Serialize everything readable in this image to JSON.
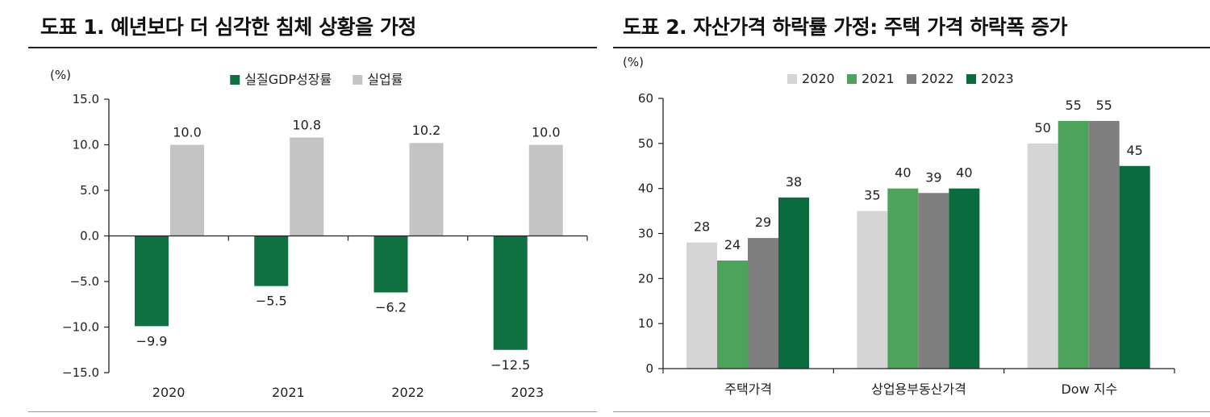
{
  "colors": {
    "gdp": "#0f7042",
    "unemployment": "#c4c4c4",
    "y2020": "#d5d5d5",
    "y2021": "#4da35c",
    "y2022": "#7f7f7f",
    "y2023": "#0a6b3f",
    "axis": "#222222",
    "text": "#222222"
  },
  "chart_data": [
    {
      "type": "bar",
      "title": "도표 1. 예년보다 더 심각한 침체 상황을 가정",
      "unit_label": "(%)",
      "xlabel": "",
      "ylabel": "",
      "categories": [
        "2020",
        "2021",
        "2022",
        "2023"
      ],
      "series": [
        {
          "name": "실질GDP성장률",
          "color": "#0f7042",
          "values": [
            -9.9,
            -5.5,
            -6.2,
            -12.5
          ],
          "labels": [
            "−9.9",
            "−5.5",
            "−6.2",
            "−12.5"
          ]
        },
        {
          "name": "실업률",
          "color": "#c4c4c4",
          "values": [
            10.0,
            10.8,
            10.2,
            10.0
          ],
          "labels": [
            "10.0",
            "10.8",
            "10.2",
            "10.0"
          ]
        }
      ],
      "ylim": [
        -15,
        15
      ],
      "yticks": [
        15,
        10,
        5,
        0,
        -5,
        -10,
        -15
      ],
      "ytick_labels": [
        "15.0",
        "10.0",
        "5.0",
        "0.0",
        "−5.0",
        "−10.0",
        "−15.0"
      ],
      "grid": false,
      "legend_position": "top"
    },
    {
      "type": "bar",
      "title": "도표 2. 자산가격 하락률 가정: 주택 가격 하락폭 증가",
      "unit_label": "(%)",
      "xlabel": "",
      "ylabel": "",
      "categories": [
        "주택가격",
        "상업용부동산가격",
        "Dow 지수"
      ],
      "series": [
        {
          "name": "2020",
          "color": "#d5d5d5",
          "values": [
            28,
            35,
            50
          ],
          "labels": [
            "28",
            "35",
            "50"
          ]
        },
        {
          "name": "2021",
          "color": "#4da35c",
          "values": [
            24,
            40,
            55
          ],
          "labels": [
            "24",
            "40",
            "55"
          ]
        },
        {
          "name": "2022",
          "color": "#7f7f7f",
          "values": [
            29,
            39,
            55
          ],
          "labels": [
            "29",
            "39",
            "55"
          ]
        },
        {
          "name": "2023",
          "color": "#0a6b3f",
          "values": [
            38,
            40,
            45
          ],
          "labels": [
            "38",
            "40",
            "45"
          ]
        }
      ],
      "ylim": [
        0,
        60
      ],
      "yticks": [
        60,
        50,
        40,
        30,
        20,
        10,
        0
      ],
      "ytick_labels": [
        "60",
        "50",
        "40",
        "30",
        "20",
        "10",
        "0"
      ],
      "grid": false,
      "legend_position": "top"
    }
  ]
}
